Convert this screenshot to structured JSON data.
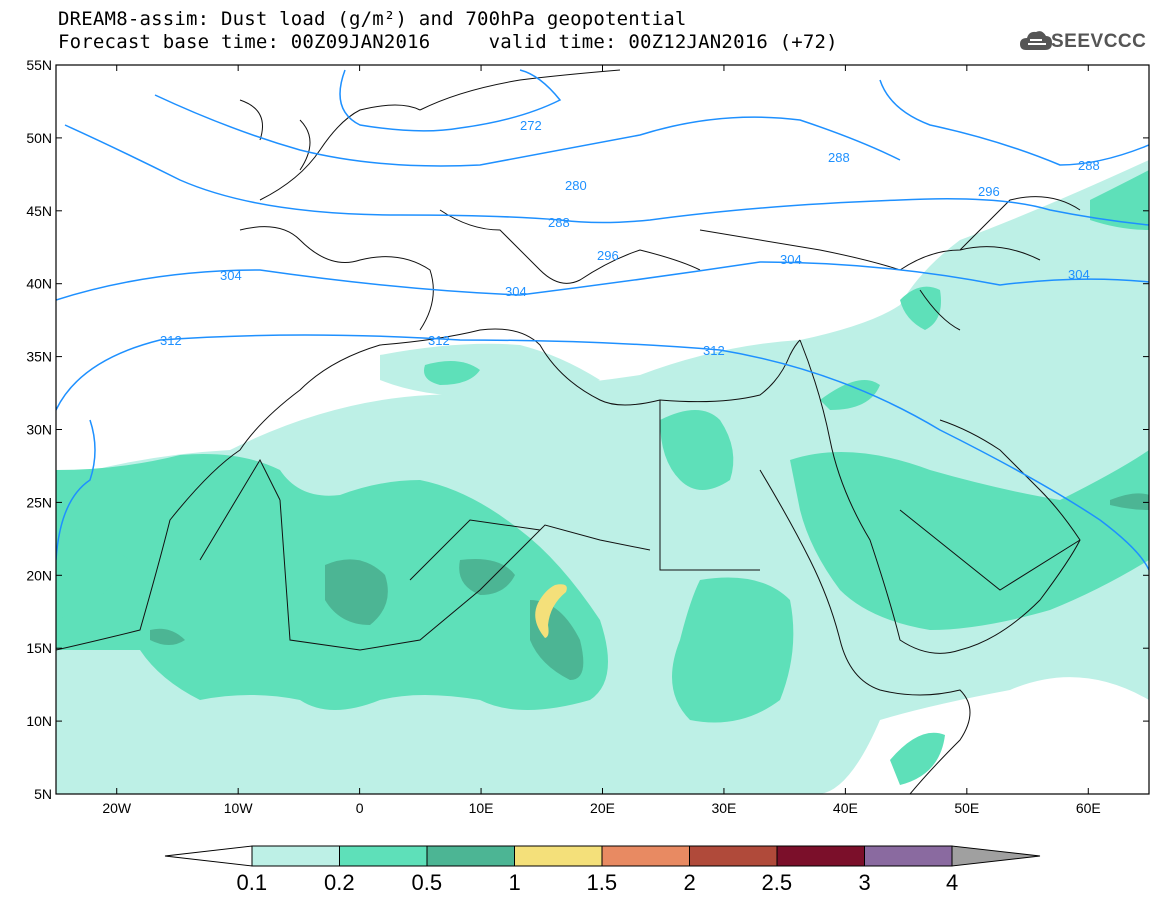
{
  "header": {
    "line1": "DREAM8-assim: Dust load (g/m²) and 700hPa geopotential",
    "line2_base": "Forecast base time: 00Z09JAN2016",
    "line2_valid": "valid time: 00Z12JAN2016 (+72)"
  },
  "logo": {
    "text": "SEEVCCC",
    "icon": "cloud-icon"
  },
  "map": {
    "lon_range": [
      -25,
      65
    ],
    "lat_range": [
      5,
      55
    ],
    "lat_ticks": [
      "5N",
      "10N",
      "15N",
      "20N",
      "25N",
      "30N",
      "35N",
      "40N",
      "45N",
      "50N",
      "55N"
    ],
    "lon_ticks": [
      "20W",
      "10W",
      "0",
      "10E",
      "20E",
      "30E",
      "40E",
      "50E",
      "60E"
    ],
    "contour_color": "#1e90ff",
    "contour_labels": [
      "272",
      "280",
      "288",
      "288",
      "288",
      "296",
      "296",
      "304",
      "304",
      "304",
      "304",
      "312",
      "312",
      "312"
    ]
  },
  "colorbar": {
    "labels": [
      "0.1",
      "0.2",
      "0.5",
      "1",
      "1.5",
      "2",
      "2.5",
      "3",
      "4"
    ],
    "colors": [
      "#bdf0e6",
      "#5ee0b9",
      "#4cb594",
      "#f4e07a",
      "#e88a62",
      "#b04a3a",
      "#7b0f2a",
      "#8a6aa0",
      "#a0a0a0"
    ]
  }
}
